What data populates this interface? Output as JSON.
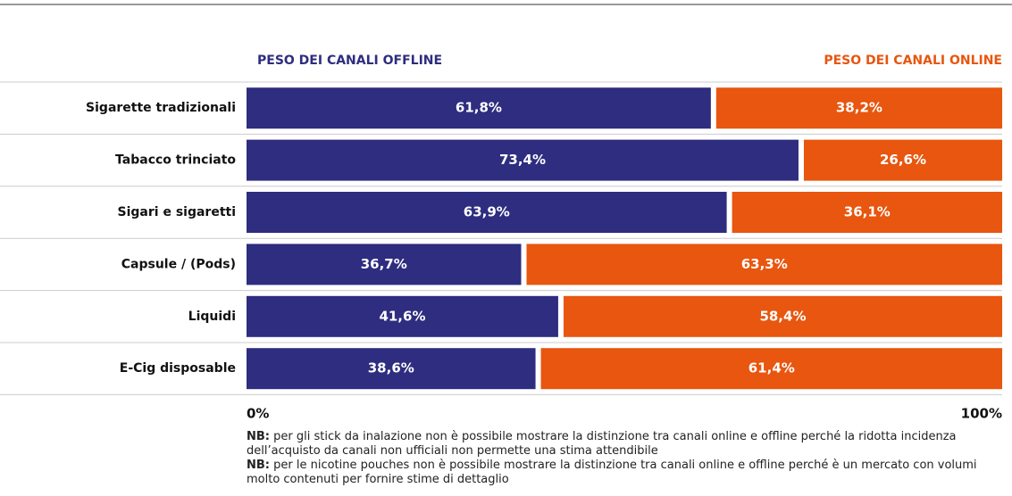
{
  "chart_data": {
    "type": "stacked-bar-horizontal",
    "categories": [
      "Sigarette tradizionali",
      "Tabacco trinciato",
      "Sigari e sigaretti",
      "Capsule / (Pods)",
      "Liquidi",
      "E-Cig disposable"
    ],
    "series": [
      {
        "name": "PESO DEI CANALI OFFLINE",
        "color": "#2e2d7f",
        "values": [
          61.8,
          73.4,
          63.9,
          36.7,
          41.6,
          38.6
        ],
        "value_labels": [
          "61,8%",
          "73,4%",
          "63,9%",
          "36,7%",
          "41,6%",
          "38,6%"
        ]
      },
      {
        "name": "PESO DEI CANALI ONLINE",
        "color": "#e8560f",
        "values": [
          38.2,
          26.6,
          36.1,
          63.3,
          58.4,
          61.4
        ],
        "value_labels": [
          "38,2%",
          "26,6%",
          "36,1%",
          "63,3%",
          "58,4%",
          "61,4%"
        ]
      }
    ],
    "xlim": [
      0,
      100
    ],
    "xticks": [
      {
        "value": 0,
        "label": "0%"
      },
      {
        "value": 100,
        "label": "100%"
      }
    ],
    "notes": [
      {
        "label": "NB:",
        "text": "per gli stick da inalazione non è possibile mostrare la distinzione tra canali online e offline perché la ridotta incidenza dell’acquisto da canali non ufficiali non permette una stima attendibile"
      },
      {
        "label": "NB:",
        "text": "per le nicotine pouches non è possibile mostrare la distinzione tra canali online e offline perché è un mercato con volumi molto contenuti per fornire stime di dettaglio"
      }
    ]
  }
}
